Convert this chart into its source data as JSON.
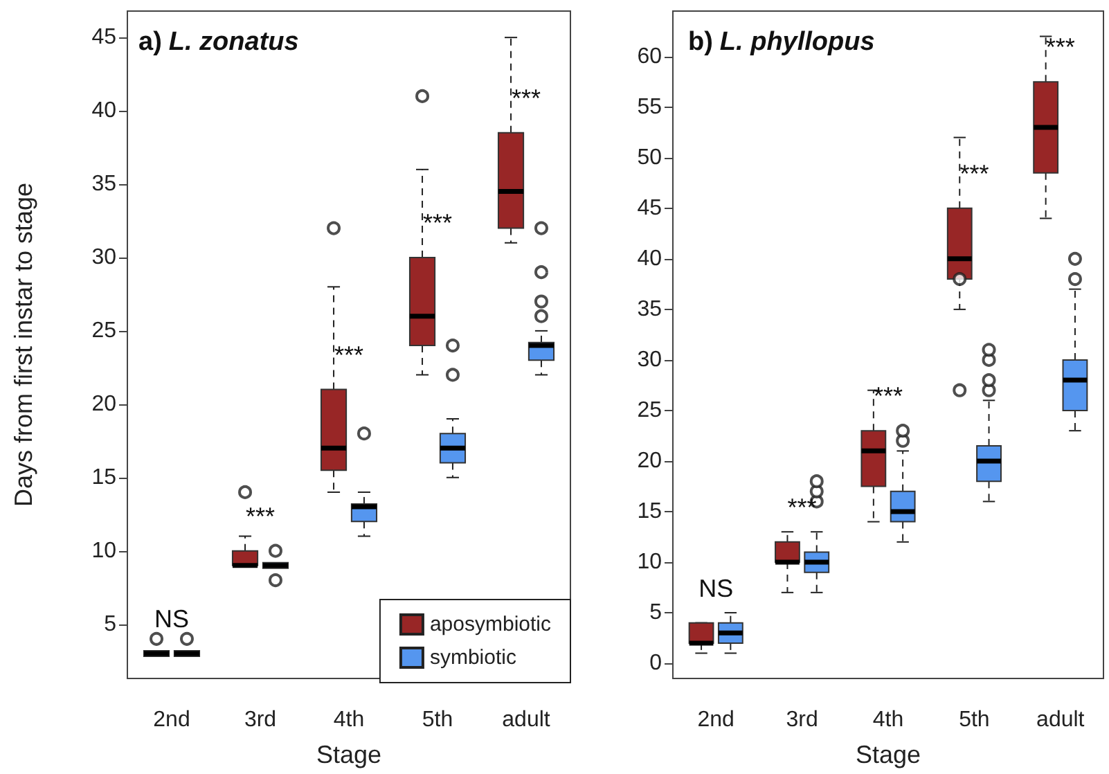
{
  "chart_data": [
    {
      "type": "box",
      "title": "a) L. zonatus",
      "xlabel": "Stage",
      "ylabel": "Days from first instar to stage",
      "categories": [
        "2nd",
        "3rd",
        "4th",
        "5th",
        "adult"
      ],
      "ylim": [
        1.3,
        46.8
      ],
      "yticks": [
        5,
        10,
        15,
        20,
        25,
        30,
        35,
        40,
        45
      ],
      "grid": false,
      "legend": "bottom right",
      "series": [
        {
          "name": "aposymbiotic",
          "color": "#982626",
          "boxes": [
            {
              "low": 3,
              "q1": 3,
              "median": 3,
              "q3": 3,
              "high": 3,
              "outliers": [
                4
              ]
            },
            {
              "low": 9,
              "q1": 9,
              "median": 9,
              "q3": 10,
              "high": 11,
              "outliers": [
                14
              ]
            },
            {
              "low": 14,
              "q1": 15.5,
              "median": 17,
              "q3": 21,
              "high": 28,
              "outliers": [
                32
              ]
            },
            {
              "low": 22,
              "q1": 24,
              "median": 26,
              "q3": 30,
              "high": 36,
              "outliers": [
                41
              ]
            },
            {
              "low": 31,
              "q1": 32,
              "median": 34.5,
              "q3": 38.5,
              "high": 45
            }
          ]
        },
        {
          "name": "symbiotic",
          "color": "#5596ef",
          "boxes": [
            {
              "low": 3,
              "q1": 3,
              "median": 3,
              "q3": 3,
              "high": 3,
              "outliers": [
                4
              ]
            },
            {
              "low": 9,
              "q1": 9,
              "median": 9,
              "q3": 9,
              "high": 9,
              "outliers": [
                8,
                10
              ]
            },
            {
              "low": 11,
              "q1": 12,
              "median": 13,
              "q3": 13.2,
              "high": 14,
              "outliers": [
                18
              ]
            },
            {
              "low": 15,
              "q1": 16,
              "median": 17,
              "q3": 18,
              "high": 19,
              "outliers": [
                22,
                24
              ]
            },
            {
              "low": 22,
              "q1": 23,
              "median": 24,
              "q3": 24.2,
              "high": 25,
              "outliers": [
                26,
                27,
                29,
                32
              ]
            }
          ]
        }
      ],
      "annotations": [
        "NS",
        "***",
        "***",
        "***",
        "***"
      ]
    },
    {
      "type": "box",
      "title": "b) L. phyllopus",
      "xlabel": "Stage",
      "categories": [
        "2nd",
        "3rd",
        "4th",
        "5th",
        "adult"
      ],
      "ylim": [
        -1.5,
        64.5
      ],
      "yticks": [
        0,
        5,
        10,
        15,
        20,
        25,
        30,
        35,
        40,
        45,
        50,
        55,
        60
      ],
      "grid": false,
      "series": [
        {
          "color": "#982626",
          "boxes": [
            {
              "low": 1,
              "q1": 2,
              "median": 2,
              "q3": 4,
              "high": 4
            },
            {
              "low": 7,
              "q1": 10,
              "median": 10,
              "q3": 12,
              "high": 13
            },
            {
              "low": 14,
              "q1": 17.5,
              "median": 21,
              "q3": 23,
              "high": 27
            },
            {
              "low": 35,
              "q1": 38,
              "median": 40,
              "q3": 45,
              "high": 52,
              "outliers": [
                38,
                27
              ]
            },
            {
              "low": 44,
              "q1": 48.5,
              "median": 53,
              "q3": 57.5,
              "high": 62
            }
          ]
        },
        {
          "color": "#5596ef",
          "boxes": [
            {
              "low": 1,
              "q1": 2,
              "median": 3,
              "q3": 4,
              "high": 5
            },
            {
              "low": 7,
              "q1": 9,
              "median": 10,
              "q3": 11,
              "high": 13,
              "outliers": [
                16,
                17,
                18
              ]
            },
            {
              "low": 12,
              "q1": 14,
              "median": 15,
              "q3": 17,
              "high": 21,
              "outliers": [
                22,
                23
              ]
            },
            {
              "low": 16,
              "q1": 18,
              "median": 20,
              "q3": 21.5,
              "high": 26,
              "outliers": [
                27,
                28,
                30,
                31
              ]
            },
            {
              "low": 23,
              "q1": 25,
              "median": 28,
              "q3": 30,
              "high": 37,
              "outliers": [
                38,
                40
              ]
            }
          ]
        }
      ],
      "annotations": [
        "NS",
        "***",
        "***",
        "***",
        "***"
      ]
    }
  ]
}
